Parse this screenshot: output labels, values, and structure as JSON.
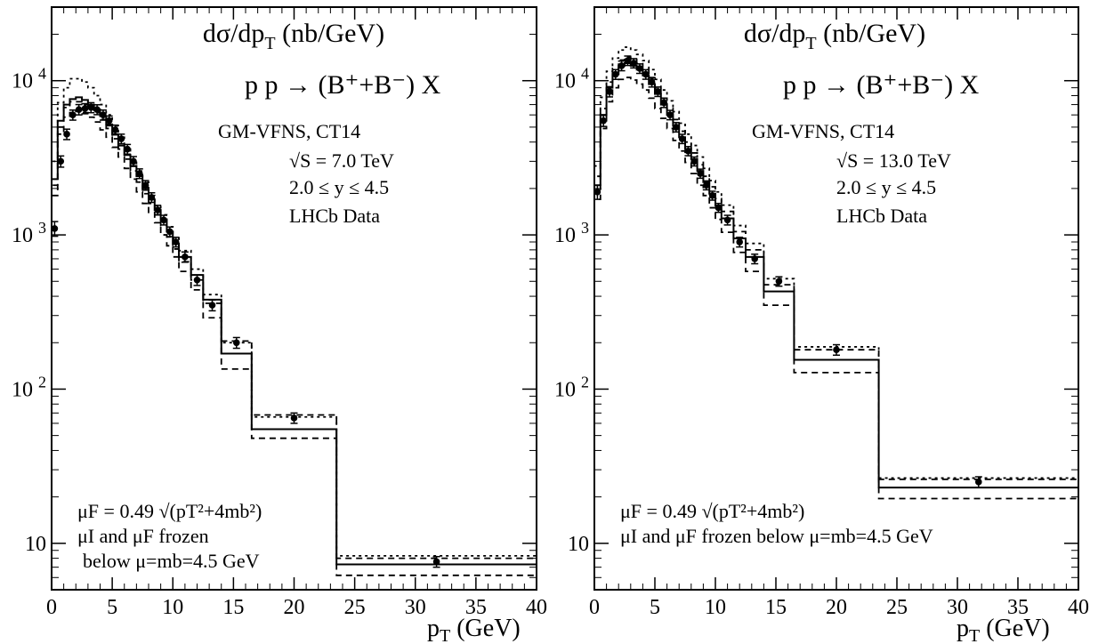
{
  "chart_data": [
    {
      "type": "step-histogram",
      "title": "dσ/dp_T (nb/GeV)",
      "xlabel": "p_T (GeV)",
      "ylabel": "",
      "xlim": [
        0,
        40
      ],
      "ylim": [
        5,
        30000
      ],
      "yscale": "log",
      "xticks": [
        "0",
        "5",
        "10",
        "15",
        "20",
        "25",
        "30",
        "35",
        "40"
      ],
      "yticks": [
        "10",
        "10^2",
        "10^3",
        "10^4"
      ],
      "annotations": {
        "process": "p p → (B⁺+B⁻) X",
        "scheme": "GM-VFNS, CT14",
        "energy": "√S = 7.0 TeV",
        "rapidity": "2.0 ≤  y ≤ 4.5",
        "data_label": "LHCb Data",
        "scale_line1": "μF = 0.49 √(pT²+4mb²)",
        "scale_line2": "μI and μF frozen",
        "scale_line3": "below μ=mb=4.5 GeV"
      },
      "bin_edges": [
        0,
        0.5,
        1,
        1.5,
        2,
        2.5,
        3,
        3.5,
        4,
        4.5,
        5,
        5.5,
        6,
        6.5,
        7,
        7.5,
        8,
        8.5,
        9,
        9.5,
        10,
        10.5,
        11.5,
        12.5,
        14,
        16.5,
        23.5,
        40
      ],
      "series": [
        {
          "name": "central",
          "style": "solid",
          "values": [
            2300,
            5500,
            7000,
            7600,
            7800,
            7500,
            7000,
            6500,
            5900,
            5200,
            4500,
            3800,
            3300,
            2800,
            2400,
            2000,
            1700,
            1450,
            1250,
            1050,
            880,
            720,
            550,
            380,
            170,
            55,
            7.3
          ]
        },
        {
          "name": "upper",
          "style": "dotted",
          "values": [
            3000,
            7200,
            9000,
            10300,
            10300,
            9800,
            9000,
            8000,
            7000,
            6000,
            5100,
            4300,
            3600,
            3100,
            2600,
            2200,
            1800,
            1550,
            1350,
            1130,
            950,
            790,
            600,
            410,
            200,
            66,
            8.3
          ]
        },
        {
          "name": "lower",
          "style": "dashed",
          "values": [
            1800,
            4500,
            5800,
            6200,
            6400,
            6200,
            5800,
            5400,
            4800,
            4300,
            3700,
            3200,
            2700,
            2300,
            1900,
            1600,
            1400,
            1200,
            1000,
            850,
            720,
            580,
            440,
            290,
            135,
            48,
            6.2
          ]
        },
        {
          "name": "upper-2",
          "style": "dashed",
          "values": [
            2100,
            5000,
            6700,
            7300,
            7300,
            7000,
            6700,
            6200,
            5600,
            4900,
            4200,
            3600,
            3100,
            2600,
            2200,
            1850,
            1600,
            1350,
            1150,
            970,
            810,
            670,
            510,
            360,
            205,
            68,
            8.0
          ]
        }
      ],
      "data_points": {
        "name": "LHCb Data",
        "x": [
          0.25,
          0.75,
          1.25,
          1.75,
          2.25,
          2.75,
          3.25,
          3.75,
          4.25,
          4.75,
          5.25,
          5.75,
          6.25,
          6.75,
          7.25,
          7.75,
          8.25,
          8.75,
          9.25,
          9.75,
          10.25,
          11,
          12,
          13.25,
          15.25,
          20,
          31.75
        ],
        "y": [
          1100,
          3000,
          4500,
          6000,
          6500,
          6600,
          6700,
          6500,
          6000,
          5500,
          4800,
          4200,
          3600,
          3000,
          2500,
          2100,
          1750,
          1450,
          1250,
          1050,
          900,
          720,
          510,
          350,
          200,
          65,
          7.6
        ],
        "err": [
          120,
          250,
          350,
          450,
          500,
          500,
          500,
          480,
          450,
          400,
          350,
          300,
          260,
          220,
          180,
          150,
          125,
          105,
          90,
          75,
          65,
          55,
          40,
          28,
          16,
          5,
          0.6
        ]
      }
    },
    {
      "type": "step-histogram",
      "title": "dσ/dp_T (nb/GeV)",
      "xlabel": "p_T (GeV)",
      "ylabel": "",
      "xlim": [
        0,
        40
      ],
      "ylim": [
        5,
        30000
      ],
      "yscale": "log",
      "xticks": [
        "0",
        "5",
        "10",
        "15",
        "20",
        "25",
        "30",
        "35",
        "40"
      ],
      "yticks": [
        "10",
        "10^2",
        "10^3",
        "10^4"
      ],
      "annotations": {
        "process": "p p → (B⁺+B⁻) X",
        "scheme": "GM-VFNS, CT14",
        "energy": "√S = 13.0 TeV",
        "rapidity": "2.0 ≤  y ≤ 4.5",
        "data_label": "LHCb Data",
        "scale_line1": "μF = 0.49 √(pT²+4mb²)",
        "scale_line2": "μI and μF frozen below μ=mb=4.5 GeV"
      },
      "bin_edges": [
        0,
        0.5,
        1,
        1.5,
        2,
        2.5,
        3,
        3.5,
        4,
        4.5,
        5,
        5.5,
        6,
        6.5,
        7,
        7.5,
        8,
        8.5,
        9,
        9.5,
        10,
        10.5,
        11.5,
        12.5,
        14,
        16.5,
        23.5,
        40
      ],
      "series": [
        {
          "name": "central",
          "style": "solid",
          "values": [
            2100,
            6000,
            9000,
            11000,
            12500,
            13000,
            12500,
            11800,
            10800,
            9500,
            8200,
            7000,
            6000,
            5100,
            4300,
            3600,
            3100,
            2600,
            2200,
            1850,
            1550,
            1280,
            950,
            720,
            430,
            155,
            23
          ]
        },
        {
          "name": "upper",
          "style": "dotted",
          "values": [
            2800,
            7800,
            11500,
            14000,
            15800,
            16500,
            15800,
            14800,
            13500,
            11800,
            10200,
            8700,
            7400,
            6300,
            5300,
            4500,
            3800,
            3200,
            2700,
            2250,
            1900,
            1560,
            1150,
            880,
            520,
            188,
            26.5
          ]
        },
        {
          "name": "lower",
          "style": "dashed",
          "values": [
            1700,
            4900,
            7300,
            9000,
            10200,
            10500,
            10100,
            9500,
            8700,
            7700,
            6600,
            5700,
            4900,
            4100,
            3500,
            2950,
            2500,
            2100,
            1800,
            1500,
            1260,
            1040,
            770,
            580,
            350,
            128,
            19.5
          ]
        },
        {
          "name": "upper-2",
          "style": "dashed",
          "values": [
            2400,
            6600,
            9800,
            12000,
            13600,
            14200,
            13700,
            12900,
            11800,
            10400,
            9000,
            7700,
            6600,
            5600,
            4700,
            4000,
            3400,
            2850,
            2400,
            2050,
            1720,
            1420,
            1050,
            800,
            475,
            180,
            26
          ]
        }
      ],
      "data_points": {
        "name": "LHCb Data",
        "x": [
          0.25,
          0.75,
          1.25,
          1.75,
          2.25,
          2.75,
          3.25,
          3.75,
          4.25,
          4.75,
          5.25,
          5.75,
          6.25,
          6.75,
          7.25,
          7.75,
          8.25,
          8.75,
          9.25,
          9.75,
          10.25,
          11,
          12,
          13.25,
          15.25,
          20,
          31.75
        ],
        "y": [
          1900,
          5500,
          8500,
          11000,
          12500,
          13500,
          13000,
          12000,
          11000,
          9800,
          8500,
          7200,
          6000,
          5000,
          4200,
          3500,
          3000,
          2500,
          2100,
          1800,
          1500,
          1250,
          900,
          700,
          500,
          180,
          25
        ],
        "err": [
          200,
          450,
          650,
          800,
          900,
          950,
          900,
          850,
          780,
          700,
          600,
          500,
          420,
          350,
          290,
          240,
          200,
          170,
          140,
          120,
          100,
          90,
          65,
          50,
          35,
          14,
          2
        ]
      }
    }
  ]
}
